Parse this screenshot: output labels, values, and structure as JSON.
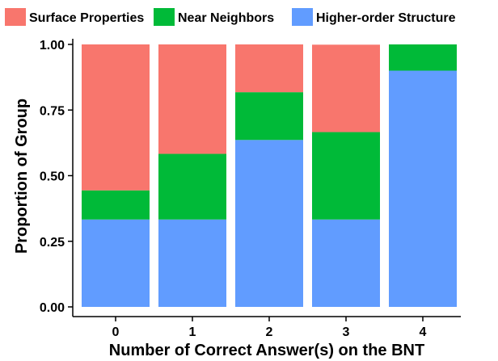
{
  "chart_data": {
    "type": "bar",
    "stacked": true,
    "title": "",
    "xlabel": "Number of Correct Answer(s) on the BNT",
    "ylabel": "Proportion of Group",
    "categories": [
      "0",
      "1",
      "2",
      "3",
      "4"
    ],
    "ylim": [
      0,
      1
    ],
    "yticks": [
      "0.00",
      "0.25",
      "0.50",
      "0.75",
      "1.00"
    ],
    "grid": false,
    "legend_position": "top",
    "series": [
      {
        "name": "Higher-order Structure",
        "color": "#619CFF",
        "values": [
          0.333,
          0.333,
          0.636,
          0.333,
          0.9
        ]
      },
      {
        "name": "Near Neighbors",
        "color": "#00BA38",
        "values": [
          0.111,
          0.25,
          0.182,
          0.333,
          0.1
        ]
      },
      {
        "name": "Surface Properties",
        "color": "#F8766D",
        "values": [
          0.556,
          0.417,
          0.182,
          0.333,
          0.0
        ]
      }
    ],
    "legend": [
      {
        "name": "Surface Properties",
        "color": "#F8766D"
      },
      {
        "name": "Near Neighbors",
        "color": "#00BA38"
      },
      {
        "name": "Higher-order Structure",
        "color": "#619CFF"
      }
    ]
  }
}
